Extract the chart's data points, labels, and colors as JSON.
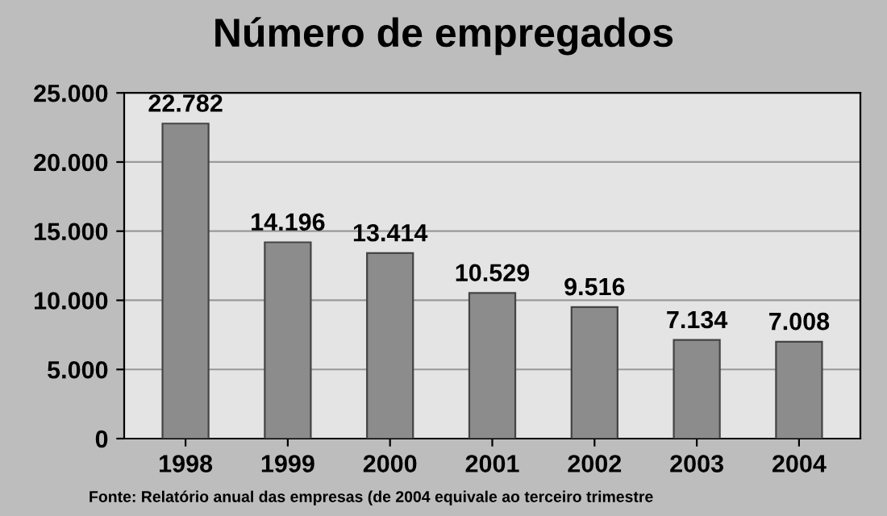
{
  "chart_data": {
    "type": "bar",
    "title": "Número de empregados",
    "categories": [
      "1998",
      "1999",
      "2000",
      "2001",
      "2002",
      "2003",
      "2004"
    ],
    "values": [
      22782,
      14196,
      13414,
      10529,
      9516,
      7134,
      7008
    ],
    "value_labels": [
      "22.782",
      "14.196",
      "13.414",
      "10.529",
      "9.516",
      "7.134",
      "7.008"
    ],
    "color": "#8c8c8c",
    "ylim": [
      0,
      25000
    ],
    "yticks": [
      {
        "value": 0,
        "label": "0"
      },
      {
        "value": 5000,
        "label": "5.000"
      },
      {
        "value": 10000,
        "label": "10.000"
      },
      {
        "value": 15000,
        "label": "15.000"
      },
      {
        "value": 20000,
        "label": "20.000"
      },
      {
        "value": 25000,
        "label": "25.000"
      }
    ],
    "grid": "y",
    "annotations": [
      "Fonte: Relatório anual das empresas (de 2004 equivale ao terceiro trimestre"
    ]
  }
}
